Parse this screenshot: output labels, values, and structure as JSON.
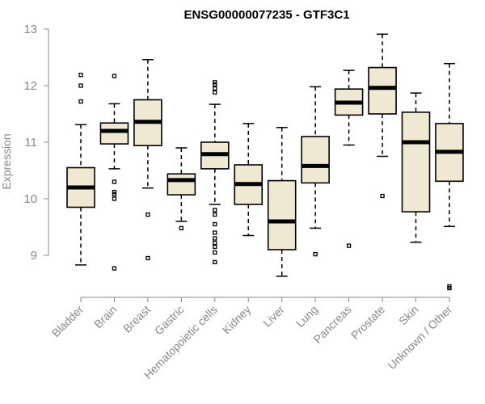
{
  "chart_data": {
    "type": "boxplot",
    "title": "ENSG00000077235 - GTF3C1",
    "xlabel": "",
    "ylabel": "Expression",
    "ylim": [
      8.3,
      13.0
    ],
    "yticks": [
      "9",
      "10",
      "11",
      "12",
      "13"
    ],
    "categories": [
      "Bladder",
      "Brain",
      "Breast",
      "Gastric",
      "Hematopoietic cells",
      "Kidney",
      "Liver",
      "Lung",
      "Pancreas",
      "Prostate",
      "Skin",
      "Unknown / Other"
    ],
    "series": [
      {
        "name": "Bladder",
        "whisker_low": 8.83,
        "q1": 9.85,
        "median": 10.2,
        "q3": 10.55,
        "whisker_high": 11.31,
        "outliers": [
          11.72,
          12.0,
          12.19
        ]
      },
      {
        "name": "Brain",
        "whisker_low": 10.53,
        "q1": 10.97,
        "median": 11.2,
        "q3": 11.34,
        "whisker_high": 11.68,
        "outliers": [
          8.77,
          10.0,
          10.08,
          10.12,
          10.3,
          12.17
        ]
      },
      {
        "name": "Breast",
        "whisker_low": 10.19,
        "q1": 10.94,
        "median": 11.36,
        "q3": 11.75,
        "whisker_high": 12.46,
        "outliers": [
          8.95,
          9.72
        ]
      },
      {
        "name": "Gastric",
        "whisker_low": 9.6,
        "q1": 10.07,
        "median": 10.33,
        "q3": 10.44,
        "whisker_high": 10.9,
        "outliers": [
          9.48
        ]
      },
      {
        "name": "Hematopoietic cells",
        "whisker_low": 9.9,
        "q1": 10.53,
        "median": 10.79,
        "q3": 11.0,
        "whisker_high": 11.67,
        "outliers": [
          8.88,
          9.05,
          9.15,
          9.22,
          9.3,
          9.4,
          9.55,
          9.72,
          9.8,
          11.88,
          11.95,
          12.02,
          12.06
        ]
      },
      {
        "name": "Kidney",
        "whisker_low": 9.35,
        "q1": 9.9,
        "median": 10.26,
        "q3": 10.6,
        "whisker_high": 11.33,
        "outliers": []
      },
      {
        "name": "Liver",
        "whisker_low": 8.63,
        "q1": 9.1,
        "median": 9.6,
        "q3": 10.32,
        "whisker_high": 11.26,
        "outliers": []
      },
      {
        "name": "Lung",
        "whisker_low": 9.48,
        "q1": 10.28,
        "median": 10.58,
        "q3": 11.1,
        "whisker_high": 11.98,
        "outliers": [
          9.02
        ]
      },
      {
        "name": "Pancreas",
        "whisker_low": 10.95,
        "q1": 11.48,
        "median": 11.7,
        "q3": 11.94,
        "whisker_high": 12.27,
        "outliers": [
          9.17
        ]
      },
      {
        "name": "Prostate",
        "whisker_low": 10.75,
        "q1": 11.5,
        "median": 11.96,
        "q3": 12.32,
        "whisker_high": 12.91,
        "outliers": [
          10.05
        ]
      },
      {
        "name": "Skin",
        "whisker_low": 9.23,
        "q1": 9.77,
        "median": 11.0,
        "q3": 11.53,
        "whisker_high": 11.87,
        "outliers": []
      },
      {
        "name": "Unknown / Other",
        "whisker_low": 9.51,
        "q1": 10.31,
        "median": 10.83,
        "q3": 11.33,
        "whisker_high": 12.39,
        "outliers": [
          8.42,
          8.45
        ]
      }
    ],
    "colors": {
      "box_fill": "#efe8d2",
      "box_stroke": "#000000",
      "axis": "#888888",
      "text": "#888888"
    }
  }
}
